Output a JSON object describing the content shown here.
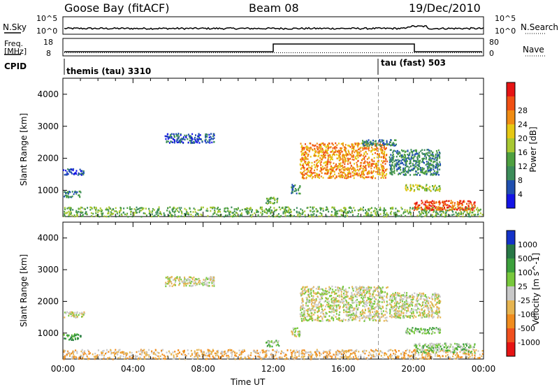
{
  "header": {
    "station": "Goose Bay (fitACF)",
    "beam": "Beam 08",
    "date": "19/Dec/2010"
  },
  "noise_panel": {
    "left_label": "N.Sky",
    "right_label": "N.Search",
    "left_ticks": [
      "10^5",
      "10^0"
    ],
    "right_ticks": [
      "10^5",
      "10^0"
    ]
  },
  "freq_panel": {
    "left_label_1": "Freq.",
    "left_label_2": "[MHz]",
    "right_label": "Nave",
    "left_ticks": [
      "18",
      "8"
    ],
    "right_ticks": [
      "80",
      "0"
    ]
  },
  "cpid": {
    "label": "CPID",
    "segments": [
      {
        "text": "themis (tau) 3310"
      },
      {
        "text": "tau (fast) 503"
      }
    ]
  },
  "chart_data": [
    {
      "type": "heatmap",
      "parameter": "Power",
      "ylabel": "Slant Range [km]",
      "xlabel": "Time UT",
      "x_ticks": [
        "00:00",
        "04:00",
        "08:00",
        "12:00",
        "16:00",
        "20:00",
        "00:00"
      ],
      "y_ticks": [
        1000,
        2000,
        3000,
        4000
      ],
      "ylim": [
        180,
        4500
      ],
      "colorbar": {
        "label": "Power [dB]",
        "ticks": [
          4,
          8,
          12,
          16,
          20,
          24,
          28
        ],
        "colors": [
          "#1414e6",
          "#2050b0",
          "#3c8c5a",
          "#4ea040",
          "#a8c832",
          "#e6c814",
          "#f08c14",
          "#f05014",
          "#e61414"
        ]
      },
      "regions": [
        {
          "t0": 0.0,
          "t1": 24.0,
          "r0": 200,
          "r1": 500,
          "level": 3
        },
        {
          "t0": 0.0,
          "t1": 1.0,
          "r0": 800,
          "r1": 1000,
          "level": 2
        },
        {
          "t0": 0.0,
          "t1": 1.2,
          "r0": 1500,
          "r1": 1700,
          "level": 1
        },
        {
          "t0": 5.8,
          "t1": 8.6,
          "r0": 2500,
          "r1": 2800,
          "level": 1
        },
        {
          "t0": 11.5,
          "t1": 12.3,
          "r0": 600,
          "r1": 800,
          "level": 3
        },
        {
          "t0": 13.0,
          "t1": 13.5,
          "r0": 900,
          "r1": 1200,
          "level": 2
        },
        {
          "t0": 13.5,
          "t1": 18.5,
          "r0": 1400,
          "r1": 2500,
          "level": 6
        },
        {
          "t0": 17.0,
          "t1": 19.0,
          "r0": 2400,
          "r1": 2600,
          "level": 2
        },
        {
          "t0": 18.6,
          "t1": 21.5,
          "r0": 1500,
          "r1": 2300,
          "level": 2
        },
        {
          "t0": 19.5,
          "t1": 21.5,
          "r0": 1000,
          "r1": 1200,
          "level": 4
        },
        {
          "t0": 20.0,
          "t1": 23.5,
          "r0": 400,
          "r1": 700,
          "level": 7
        }
      ]
    },
    {
      "type": "heatmap",
      "parameter": "Velocity",
      "ylabel": "Slant Range [km]",
      "xlabel": "Time UT",
      "x_ticks": [
        "00:00",
        "04:00",
        "08:00",
        "12:00",
        "16:00",
        "20:00",
        "00:00"
      ],
      "y_ticks": [
        1000,
        2000,
        3000,
        4000
      ],
      "ylim": [
        180,
        4500
      ],
      "colorbar": {
        "label": "Velocity [m s^-1]",
        "ticks": [
          1000,
          500,
          100,
          25,
          -25,
          -100,
          -500,
          -1000
        ],
        "colors": [
          "#1432c8",
          "#287846",
          "#3ca03c",
          "#78c83c",
          "#c8c8c8",
          "#e6b450",
          "#f08c1e",
          "#f0501e",
          "#e61414"
        ]
      },
      "regions": [
        {
          "t0": 0.0,
          "t1": 24.0,
          "r0": 200,
          "r1": 500,
          "level": 5
        },
        {
          "t0": 0.0,
          "t1": 1.0,
          "r0": 800,
          "r1": 1000,
          "level": 2
        },
        {
          "t0": 0.0,
          "t1": 1.2,
          "r0": 1500,
          "r1": 1700,
          "level": 4
        },
        {
          "t0": 5.8,
          "t1": 8.6,
          "r0": 2500,
          "r1": 2800,
          "level": 4
        },
        {
          "t0": 11.5,
          "t1": 12.3,
          "r0": 600,
          "r1": 800,
          "level": 3
        },
        {
          "t0": 13.0,
          "t1": 13.5,
          "r0": 900,
          "r1": 1200,
          "level": 4
        },
        {
          "t0": 13.5,
          "t1": 18.5,
          "r0": 1400,
          "r1": 2500,
          "level": 4
        },
        {
          "t0": 18.6,
          "t1": 21.5,
          "r0": 1500,
          "r1": 2300,
          "level": 4
        },
        {
          "t0": 19.5,
          "t1": 21.5,
          "r0": 1000,
          "r1": 1200,
          "level": 3
        },
        {
          "t0": 20.0,
          "t1": 23.5,
          "r0": 400,
          "r1": 700,
          "level": 3
        }
      ]
    }
  ]
}
